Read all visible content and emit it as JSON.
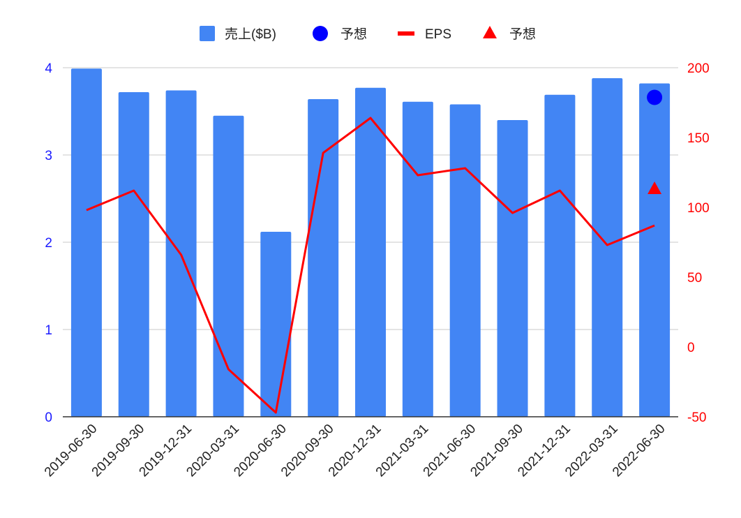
{
  "chart_data": {
    "type": "bar",
    "categories": [
      "2019-06-30",
      "2019-09-30",
      "2019-12-31",
      "2020-03-31",
      "2020-06-30",
      "2020-09-30",
      "2020-12-31",
      "2021-03-31",
      "2021-06-30",
      "2021-09-30",
      "2021-12-31",
      "2022-03-31",
      "2022-06-30"
    ],
    "series": [
      {
        "name": "売上($B)",
        "type": "bar",
        "axis": "left",
        "color": "#4285f4",
        "values": [
          3.99,
          3.72,
          3.74,
          3.45,
          2.12,
          3.64,
          3.77,
          3.61,
          3.58,
          3.4,
          3.69,
          3.88,
          3.82
        ]
      },
      {
        "name": "予想",
        "type": "scatter",
        "marker": "circle",
        "axis": "left",
        "color": "#0000ff",
        "points": [
          {
            "x": "2022-06-30",
            "y": 3.66
          }
        ]
      },
      {
        "name": "EPS",
        "type": "line",
        "axis": "right",
        "color": "#ff0000",
        "values": [
          98,
          112,
          66,
          -16,
          -47,
          139,
          164,
          123,
          128,
          96,
          112,
          73,
          87
        ]
      },
      {
        "name": "予想",
        "type": "scatter",
        "marker": "triangle",
        "axis": "right",
        "color": "#ff0000",
        "points": [
          {
            "x": "2022-06-30",
            "y": 113
          }
        ]
      }
    ],
    "y_left": {
      "ylim": [
        0,
        4
      ],
      "ticks": [
        "0",
        "1",
        "2",
        "3",
        "4"
      ],
      "color": "#1a1aff"
    },
    "y_right": {
      "ylim": [
        -50,
        200
      ],
      "ticks": [
        "-50",
        "0",
        "50",
        "100",
        "150",
        "200"
      ],
      "color": "#ff0000"
    },
    "grid": true,
    "legend_position": "top"
  }
}
